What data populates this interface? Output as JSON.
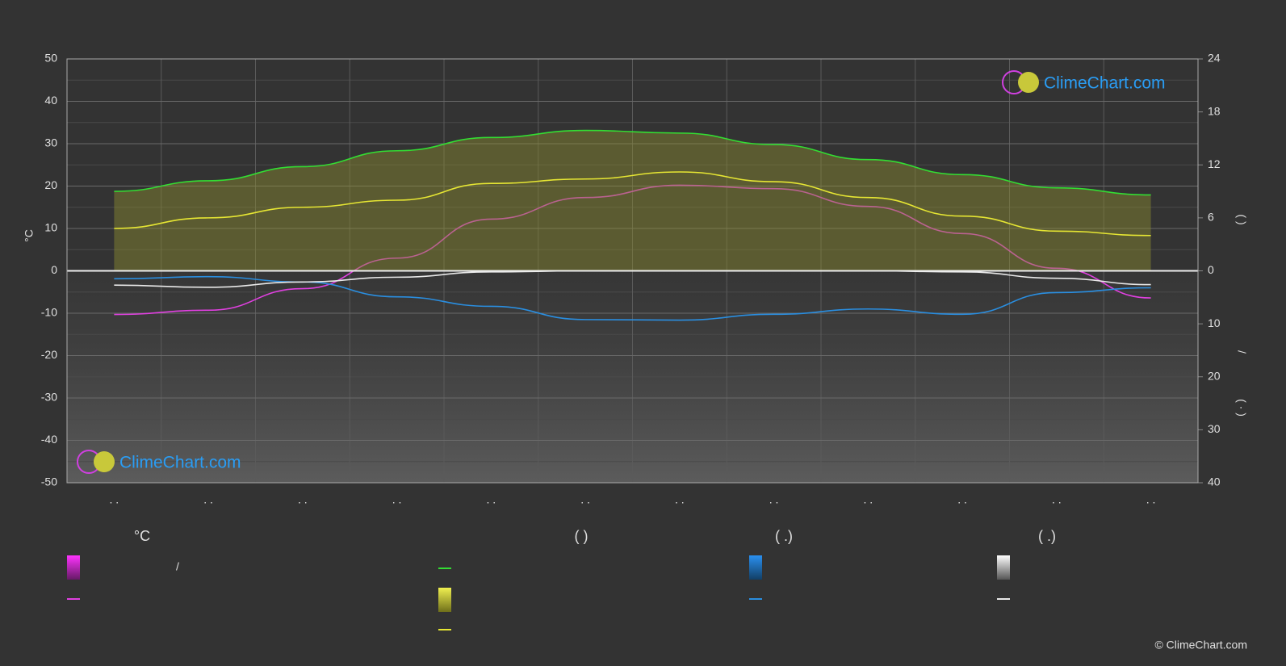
{
  "chart_data": {
    "type": "line",
    "categories": [
      ". .",
      ". .",
      ". .",
      ". .",
      ". .",
      ". .",
      ". .",
      ". .",
      ". .",
      ". .",
      ". .",
      ". ."
    ],
    "ylabel": "°C",
    "ylim": [
      -50,
      50
    ],
    "yticks": [
      -50,
      -40,
      -30,
      -20,
      -10,
      0,
      10,
      20,
      30,
      40,
      50
    ],
    "y2label": "(      )",
    "y2lim": [
      0,
      24
    ],
    "y2ticks": [
      0,
      6,
      12,
      18,
      24
    ],
    "y3label_a": "/",
    "y3label_b": "(  ·  )",
    "y3lim": [
      0,
      40
    ],
    "y3ticks": [
      10,
      20,
      30,
      40
    ],
    "grid": true,
    "series": [
      {
        "color": "#e040e0",
        "axis": "y",
        "values": [
          -10.3,
          -9.3,
          -4.2,
          3,
          12.2,
          17.3,
          20.2,
          19.4,
          15.2,
          8.8,
          0.6,
          -6.4
        ]
      },
      {
        "color": "#33dd33",
        "axis": "y2",
        "values": [
          9.0,
          10.2,
          11.8,
          13.6,
          15.1,
          15.9,
          15.6,
          14.3,
          12.6,
          10.9,
          9.4,
          8.6
        ]
      },
      {
        "color": "#e6e633",
        "axis": "y2",
        "values": [
          4.8,
          6.0,
          7.2,
          8.0,
          9.9,
          10.4,
          11.2,
          10.1,
          8.3,
          6.2,
          4.5,
          4.0
        ]
      },
      {
        "color": "#2a8ee0",
        "axis": "y3",
        "values": [
          1.5,
          1.1,
          2.1,
          4.9,
          6.7,
          9.2,
          9.3,
          8.2,
          7.2,
          8.2,
          4.1,
          3.2
        ]
      },
      {
        "color": "#e8e8e8",
        "axis": "y3",
        "values": [
          2.7,
          3.1,
          2.1,
          1.2,
          0.2,
          0,
          0,
          0,
          0,
          0.2,
          1.4,
          2.6
        ]
      }
    ],
    "legend_heads": [
      "°C",
      "(         )",
      "(   .)",
      "(   .)"
    ],
    "legend_slash": "/",
    "logo": "ClimeChart.com",
    "copyright": "© ClimeChart.com"
  }
}
